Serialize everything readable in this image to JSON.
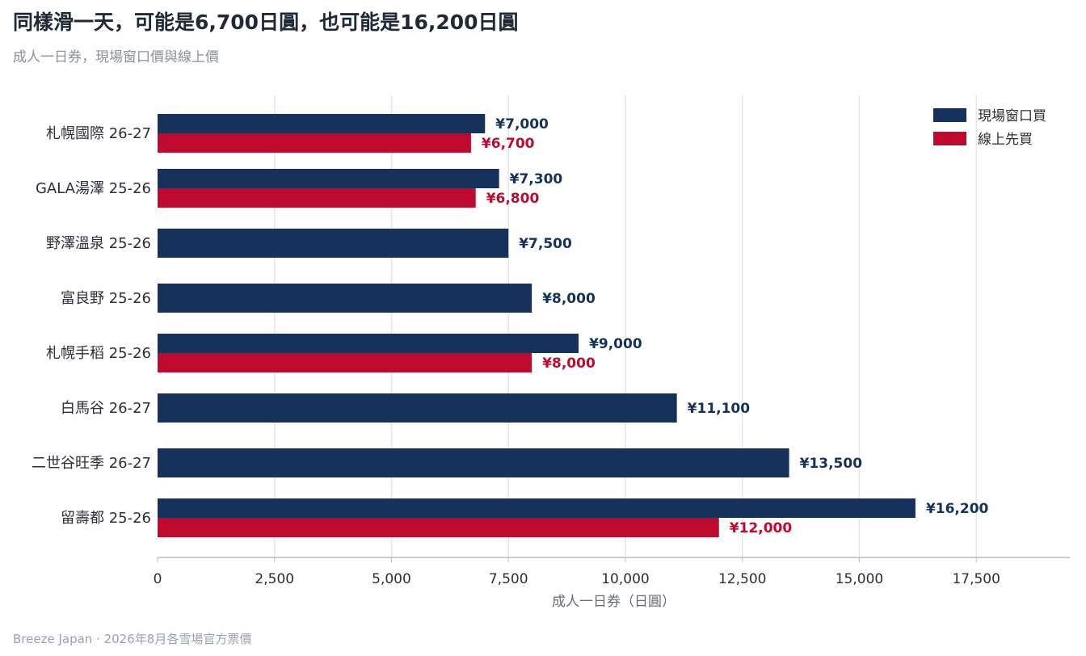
{
  "header": {
    "title": "同樣滑一天，可能是6,700日圓，也可能是16,200日圓",
    "subtitle": "成人一日券，現場窗口價與線上價"
  },
  "footer": {
    "source": "Breeze Japan · 2026年8月各雪場官方票價"
  },
  "colors": {
    "walkup": "#16325c",
    "online": "#bf0a30",
    "grid": "#e6e6e6",
    "axis": "#bbbbbb"
  },
  "chart_data": {
    "type": "bar",
    "orientation": "horizontal",
    "title": "同樣滑一天，可能是6,700日圓，也可能是16,200日圓",
    "subtitle": "成人一日券，現場窗口價與線上價",
    "xlabel": "成人一日券（日圓）",
    "ylabel": "",
    "xlim": [
      0,
      19500
    ],
    "xticks": [
      0,
      2500,
      5000,
      7500,
      10000,
      12500,
      15000,
      17500
    ],
    "xtick_labels": [
      "0",
      "2,500",
      "5,000",
      "7,500",
      "10,000",
      "12,500",
      "15,000",
      "17,500"
    ],
    "grid": "vertical",
    "legend_position": "top-right",
    "categories": [
      "札幌國際 26-27",
      "GALA湯澤 25-26",
      "野澤溫泉 25-26",
      "富良野 25-26",
      "札幌手稻 25-26",
      "白馬谷 26-27",
      "二世谷旺季 26-27",
      "留壽都 25-26"
    ],
    "series": [
      {
        "name": "現場窗口買",
        "values": [
          7000,
          7300,
          7500,
          8000,
          9000,
          11100,
          13500,
          16200
        ],
        "labels": [
          "¥7,000",
          "¥7,300",
          "¥7,500",
          "¥8,000",
          "¥9,000",
          "¥11,100",
          "¥13,500",
          "¥16,200"
        ]
      },
      {
        "name": "線上先買",
        "values": [
          6700,
          6800,
          null,
          null,
          8000,
          null,
          null,
          12000
        ],
        "labels": [
          "¥6,700",
          "¥6,800",
          null,
          null,
          "¥8,000",
          null,
          null,
          "¥12,000"
        ]
      }
    ]
  }
}
